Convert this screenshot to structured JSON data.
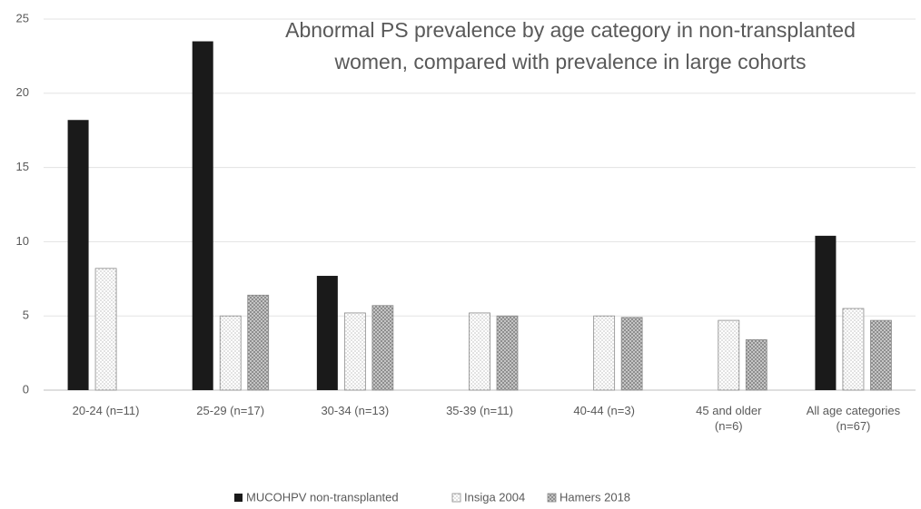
{
  "chart_data": {
    "type": "bar",
    "title": "Abnormal PS prevalence by age category in non-transplanted women, compared with prevalence in large cohorts",
    "categories": [
      "20-24 (n=11)",
      "25-29 (n=17)",
      "30-34 (n=13)",
      "35-39 (n=11)",
      "40-44 (n=3)",
      "45 and older (n=6)",
      "All age categories (n=67)"
    ],
    "series": [
      {
        "name": "MUCOHPV non-transplanted",
        "color": "#1a1a1a",
        "values": [
          18.2,
          23.5,
          7.7,
          null,
          null,
          null,
          10.4
        ]
      },
      {
        "name": "Insiga 2004",
        "color": "#ffffff",
        "values": [
          8.2,
          5.0,
          5.2,
          5.2,
          5.0,
          4.7,
          5.5
        ]
      },
      {
        "name": "Hamers 2018",
        "color": "#a0a0a0",
        "values": [
          null,
          6.4,
          5.7,
          5.0,
          4.9,
          3.4,
          4.7
        ]
      }
    ],
    "ylim": [
      0,
      25
    ],
    "yticks": [
      0,
      5,
      10,
      15,
      20,
      25
    ],
    "grid": true,
    "legend": "bottom"
  }
}
